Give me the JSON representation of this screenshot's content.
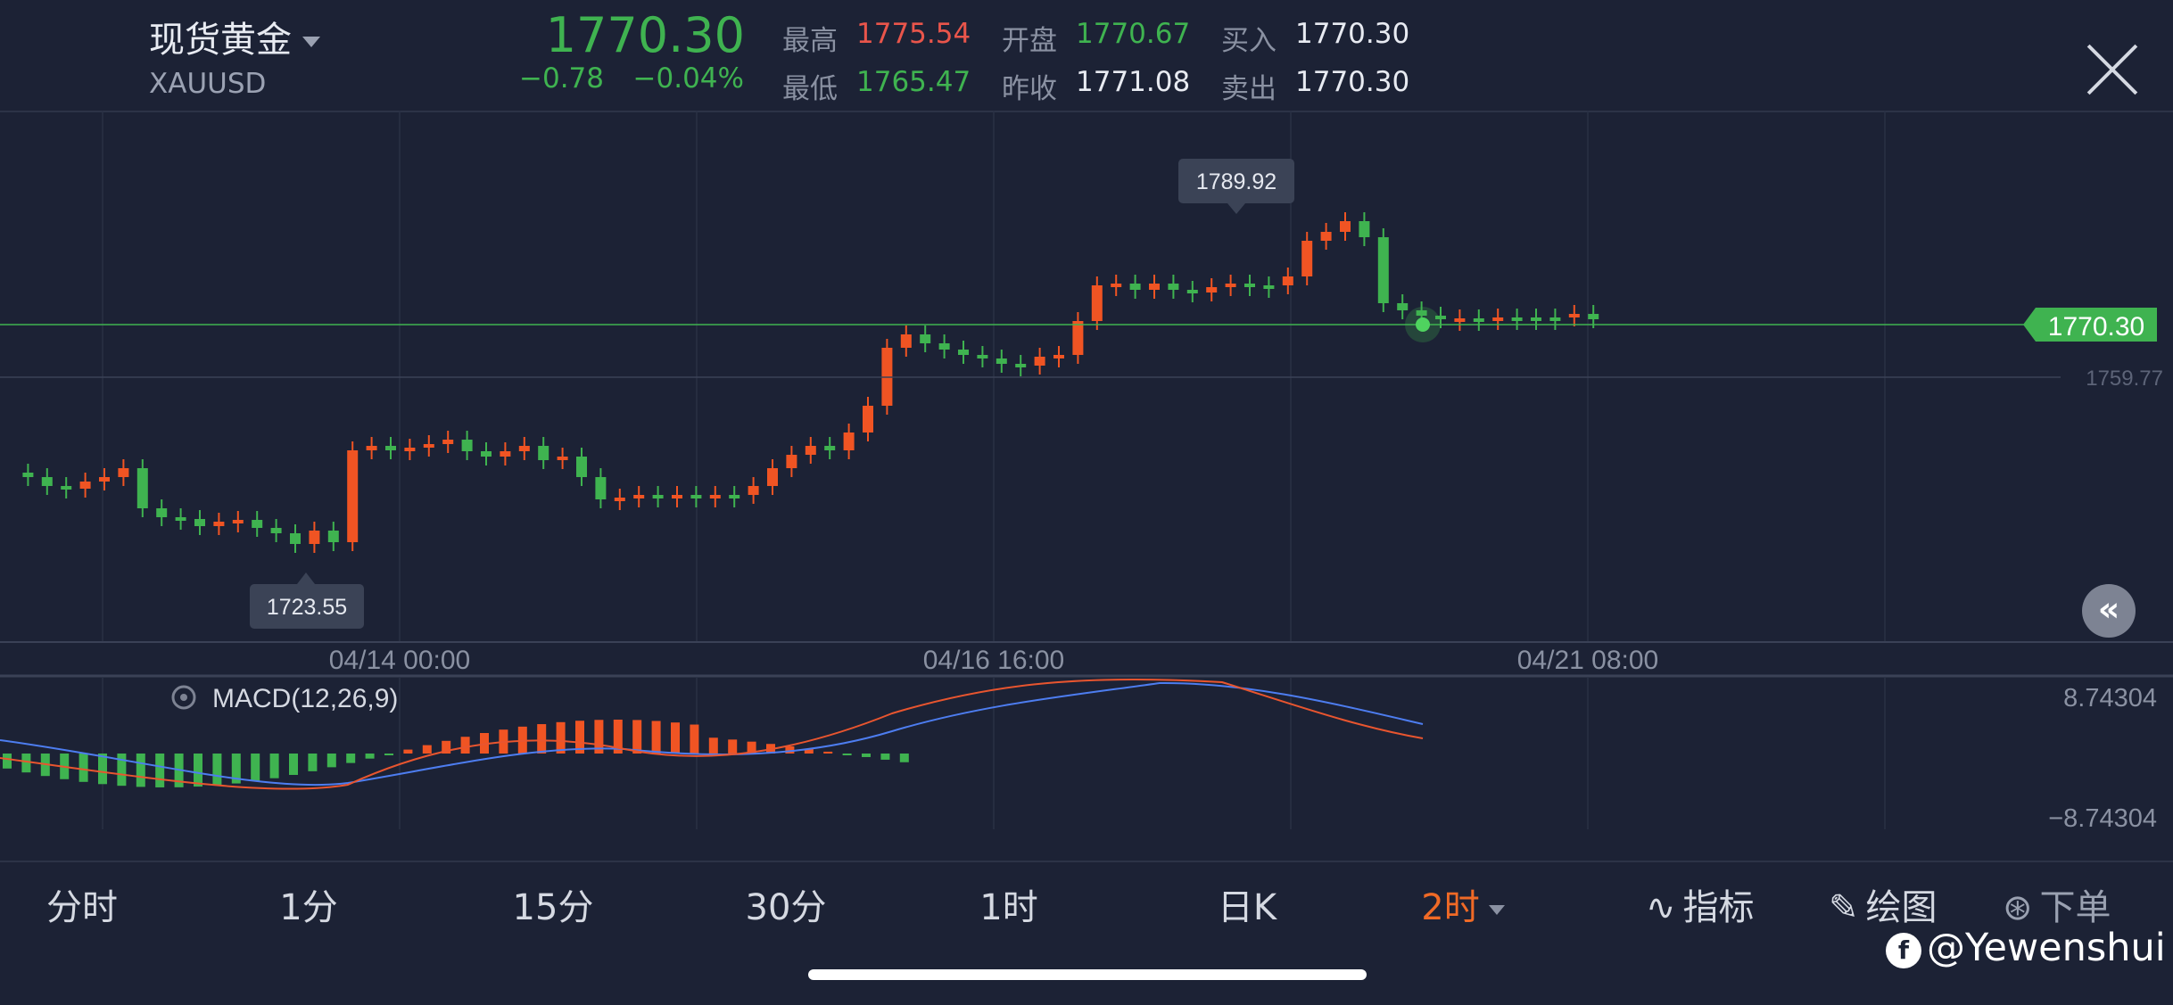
{
  "header": {
    "symbol_name": "现货黄金",
    "symbol_code": "XAUUSD",
    "price": "1770.30",
    "change": "−0.78",
    "change_pct": "−0.04%",
    "quotes": [
      {
        "label": "最高",
        "value": "1775.54",
        "color": "#e9554b"
      },
      {
        "label": "最低",
        "value": "1765.47",
        "color": "#3fb350"
      },
      {
        "label": "开盘",
        "value": "1770.67",
        "color": "#3fb350"
      },
      {
        "label": "昨收",
        "value": "1771.08",
        "color": "#e8ebf2"
      },
      {
        "label": "买入",
        "value": "1770.30",
        "color": "#e8ebf2"
      },
      {
        "label": "卖出",
        "value": "1770.30",
        "color": "#e8ebf2"
      }
    ]
  },
  "chart": {
    "max_label": "1789.92",
    "min_label": "1723.55",
    "current_price_label": "1770.30",
    "ref_price_label": "1759.77",
    "x_labels": [
      "04/14 00:00",
      "04/16 16:00",
      "04/21 08:00"
    ],
    "macd_title": "MACD(12,26,9)",
    "macd_max": "8.74304",
    "macd_min": "−8.74304"
  },
  "chart_data": {
    "type": "candlestick",
    "x": [
      "04/14 00:00",
      "04/16 16:00",
      "04/21 08:00"
    ],
    "y_reference": 1759.77,
    "last_price": 1770.3,
    "high_marker": 1789.92,
    "low_marker": 1723.55,
    "macd": {
      "params": "12,26,9",
      "ylim": [
        -8.74304,
        8.74304
      ]
    }
  },
  "timeframes": [
    {
      "label": "分时",
      "active": false
    },
    {
      "label": "1分",
      "active": false
    },
    {
      "label": "15分",
      "active": false
    },
    {
      "label": "30分",
      "active": false
    },
    {
      "label": "1时",
      "active": false
    },
    {
      "label": "日K",
      "active": false
    },
    {
      "label": "2时",
      "active": true
    }
  ],
  "tools": {
    "indicators": "指标",
    "draw": "绘图",
    "order": "下单"
  },
  "watermark": "@Yewenshui",
  "colors": {
    "up": "#f05423",
    "down": "#3fb350",
    "background": "#1c2235",
    "accent": "#f06a26"
  }
}
